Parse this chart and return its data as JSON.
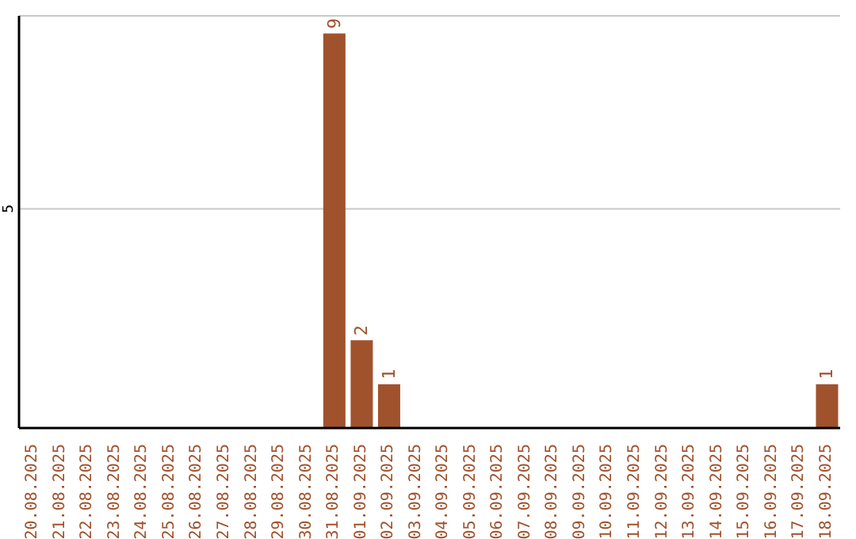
{
  "chart_data": {
    "type": "bar",
    "categories": [
      "20.08.2025",
      "21.08.2025",
      "22.08.2025",
      "23.08.2025",
      "24.08.2025",
      "25.08.2025",
      "26.08.2025",
      "27.08.2025",
      "28.08.2025",
      "29.08.2025",
      "30.08.2025",
      "31.08.2025",
      "01.09.2025",
      "02.09.2025",
      "03.09.2025",
      "04.09.2025",
      "05.09.2025",
      "06.09.2025",
      "07.09.2025",
      "08.09.2025",
      "09.09.2025",
      "10.09.2025",
      "11.09.2025",
      "12.09.2025",
      "13.09.2025",
      "14.09.2025",
      "15.09.2025",
      "16.09.2025",
      "17.09.2025",
      "18.09.2025"
    ],
    "values": [
      0,
      0,
      0,
      0,
      0,
      0,
      0,
      0,
      0,
      0,
      0,
      9,
      2,
      1,
      0,
      0,
      0,
      0,
      0,
      0,
      0,
      0,
      0,
      0,
      0,
      0,
      0,
      0,
      0,
      1
    ],
    "value_labels": [
      null,
      null,
      null,
      null,
      null,
      null,
      null,
      null,
      null,
      null,
      null,
      "9",
      "2",
      "1",
      null,
      null,
      null,
      null,
      null,
      null,
      null,
      null,
      null,
      null,
      null,
      null,
      null,
      null,
      null,
      "1"
    ],
    "color": "#a0522d",
    "ylim": [
      0,
      9.4
    ],
    "yticks": [
      5
    ],
    "grid": "y"
  }
}
